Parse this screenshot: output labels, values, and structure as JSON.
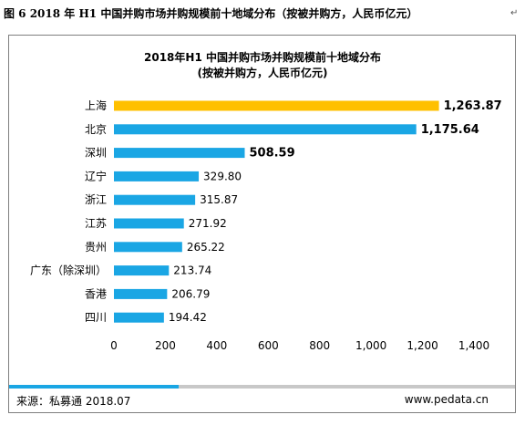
{
  "caption": "图 6  2018 年 H1 中国并购市场并购规模前十地域分布（按被并购方，人民币亿元）",
  "caption_mark": "↵",
  "footer": {
    "source": "来源：私募通 2018.07",
    "site": "www.pedata.cn"
  },
  "colors": {
    "highlight": "#ffc000",
    "bar": "#1aa6e4",
    "footer_accent": "#1aa6e4",
    "footer_line": "#c8c8c8"
  },
  "chart_data": {
    "type": "bar",
    "orientation": "horizontal",
    "title": "2018年H1 中国并购市场并购规模前十地域分布",
    "subtitle": "(按被并购方，人民币亿元)",
    "categories": [
      "上海",
      "北京",
      "深圳",
      "辽宁",
      "浙江",
      "江苏",
      "贵州",
      "广东（除深圳）",
      "香港",
      "四川"
    ],
    "values": [
      1263.87,
      1175.64,
      508.59,
      329.8,
      315.87,
      271.92,
      265.22,
      213.74,
      206.79,
      194.42
    ],
    "value_labels": [
      "1,263.87",
      "1,175.64",
      "508.59",
      "329.80",
      "315.87",
      "271.92",
      "265.22",
      "213.74",
      "206.79",
      "194.42"
    ],
    "highlighted_index": 0,
    "bold_label_indices": [
      0,
      1,
      2
    ],
    "xlim": [
      0,
      1400
    ],
    "xticks": [
      0,
      200,
      400,
      600,
      800,
      1000,
      1200,
      1400
    ],
    "xtick_labels": [
      "0",
      "200",
      "400",
      "600",
      "800",
      "1,000",
      "1,200",
      "1,400"
    ],
    "grid": false,
    "legend": "none"
  }
}
